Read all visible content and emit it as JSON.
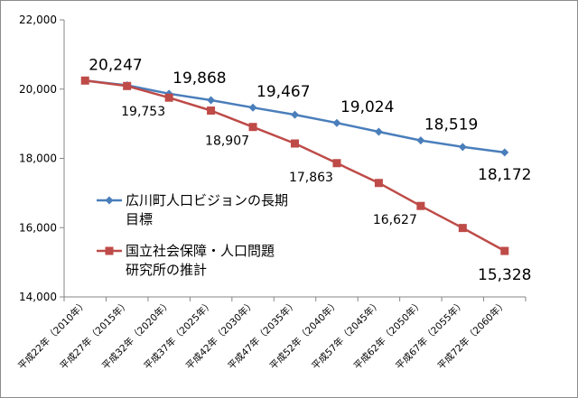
{
  "chart_data": {
    "type": "line",
    "title": "",
    "xlabel": "",
    "ylabel": "",
    "ylim": [
      14000,
      22000
    ],
    "yticks": [
      "14,000",
      "16,000",
      "18,000",
      "20,000",
      "22,000"
    ],
    "ytick_values": [
      14000,
      16000,
      18000,
      20000,
      22000
    ],
    "categories": [
      "平成22年（2010年）",
      "平成27年（2015年）",
      "平成32年（2020年）",
      "平成37年（2025年）",
      "平成42年（2030年）",
      "平成47年（2035年）",
      "平成52年（2040年）",
      "平成57年（2045年）",
      "平成62年（2050年）",
      "平成67年（2055年）",
      "平成72年（2060年）"
    ],
    "series": [
      {
        "name": "広川町人口ビジョンの長期目標",
        "legend_lines": [
          "広川町人口ビジョンの長期",
          "目標"
        ],
        "color": "#4a7ebb",
        "marker": "diamond",
        "values": [
          20247,
          20110,
          19868,
          19680,
          19467,
          19260,
          19024,
          18770,
          18519,
          18330,
          18172
        ],
        "labels": {
          "0": "20,247",
          "2": "19,868",
          "4": "19,467",
          "6": "19,024",
          "8": "18,519",
          "10": "18,172"
        }
      },
      {
        "name": "国立社会保障・人口問題研究所の推計",
        "legend_lines": [
          "国立社会保障・人口問題",
          "研究所の推計"
        ],
        "color": "#be4b48",
        "marker": "square",
        "values": [
          20247,
          20090,
          19753,
          19380,
          18907,
          18430,
          17863,
          17290,
          16627,
          15990,
          15328
        ],
        "labels": {
          "2": "19,753",
          "4": "18,907",
          "6": "17,863",
          "8": "16,627",
          "10": "15,328"
        }
      }
    ],
    "grid": false,
    "legend_position": "left-middle"
  }
}
